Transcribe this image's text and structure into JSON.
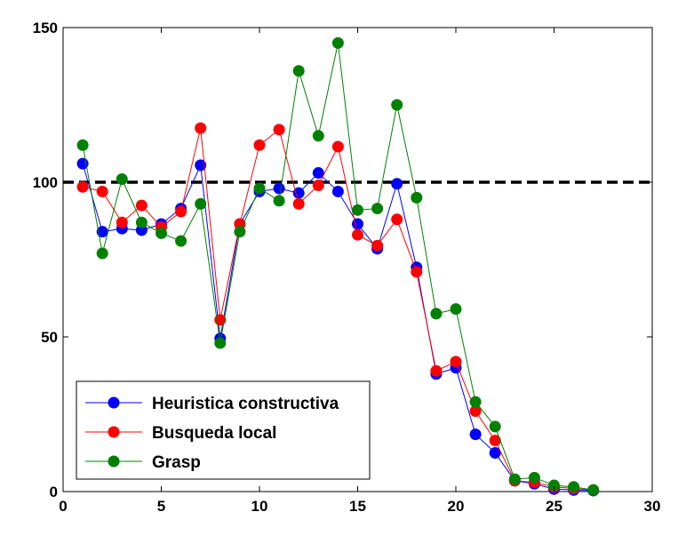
{
  "chart_data": {
    "type": "line",
    "title": "",
    "xlabel": "",
    "ylabel": "",
    "xlim": [
      0,
      30
    ],
    "ylim": [
      0,
      150
    ],
    "xticks": [
      0,
      5,
      10,
      15,
      20,
      25,
      30
    ],
    "yticks": [
      0,
      50,
      100,
      150
    ],
    "grid": false,
    "legend_position": "bottom-left",
    "reference_line": {
      "y": 100,
      "style": "dashed",
      "color": "#000000"
    },
    "series": [
      {
        "name": "Heuristica constructiva",
        "color": "#0000ff",
        "x": [
          1,
          2,
          3,
          4,
          5,
          6,
          7,
          8,
          9,
          10,
          11,
          12,
          13,
          14,
          15,
          16,
          17,
          18,
          19,
          20,
          21,
          22,
          23,
          24,
          25,
          26,
          27
        ],
        "y": [
          106,
          84,
          85,
          84.5,
          86.5,
          91.5,
          105.5,
          49.5,
          86.5,
          97,
          98,
          96.5,
          103,
          97,
          86.5,
          78.5,
          99.5,
          72.5,
          38,
          40,
          18.5,
          12.5,
          3.5,
          2.5,
          0.8,
          0.5,
          0.3
        ]
      },
      {
        "name": "Busqueda local",
        "color": "#ff0000",
        "x": [
          1,
          2,
          3,
          4,
          5,
          6,
          7,
          8,
          9,
          10,
          11,
          12,
          13,
          14,
          15,
          16,
          17,
          18,
          19,
          20,
          21,
          22,
          23,
          24,
          25,
          26,
          27
        ],
        "y": [
          98.5,
          97,
          87,
          92.5,
          85.5,
          90.5,
          117.5,
          55.5,
          86.5,
          112,
          117,
          93,
          99,
          111.5,
          83,
          79.5,
          88,
          71,
          39,
          42,
          26,
          16.5,
          3.5,
          3,
          1.5,
          1,
          0.5
        ]
      },
      {
        "name": "Grasp",
        "color": "#008000",
        "x": [
          1,
          2,
          3,
          4,
          5,
          6,
          7,
          8,
          9,
          10,
          11,
          12,
          13,
          14,
          15,
          16,
          17,
          18,
          19,
          20,
          21,
          22,
          23,
          24,
          25,
          26,
          27
        ],
        "y": [
          112,
          77,
          101,
          87,
          83.5,
          81,
          93,
          48,
          84,
          98,
          94,
          136,
          115,
          145,
          91,
          91.5,
          125,
          95,
          57.5,
          59,
          29,
          21,
          4,
          4.5,
          2,
          1.5,
          0.5
        ]
      }
    ]
  }
}
